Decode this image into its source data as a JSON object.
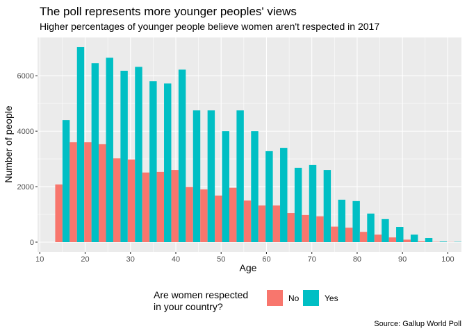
{
  "chart_data": {
    "type": "bar",
    "title": "The poll represents more younger peoples' views",
    "subtitle": "Higher percentages of younger people believe women aren't respected in 2017",
    "xlabel": "Age",
    "ylabel": "Number of people",
    "caption": "Source: Gallup World Poll",
    "xlim": [
      9.5,
      103
    ],
    "ylim": [
      -350,
      7380
    ],
    "x_ticks": [
      10,
      20,
      30,
      40,
      50,
      60,
      70,
      80,
      90,
      100
    ],
    "y_ticks": [
      0,
      2000,
      4000,
      6000
    ],
    "grid": true,
    "legend": {
      "title": "Are women respected in your country?",
      "title_lines": [
        "Are women respected",
        "in your country?"
      ],
      "position": "bottom"
    },
    "bin_width": 3.2,
    "x": [
      15,
      18.2,
      21.4,
      24.6,
      27.8,
      31,
      34.2,
      37.4,
      40.6,
      43.8,
      47,
      50.2,
      53.4,
      56.6,
      59.8,
      63,
      66.2,
      69.4,
      72.6,
      75.8,
      79,
      82.2,
      85.4,
      88.6,
      91.8,
      95,
      98.2,
      101.4
    ],
    "series": [
      {
        "name": "No",
        "color": "#F8766D",
        "values": [
          2080,
          3600,
          3600,
          3530,
          3020,
          2980,
          2510,
          2530,
          2600,
          1990,
          1900,
          1680,
          1960,
          1500,
          1320,
          1320,
          1050,
          980,
          930,
          560,
          520,
          370,
          270,
          170,
          90,
          30,
          10,
          5
        ]
      },
      {
        "name": "Yes",
        "color": "#00BFC4",
        "values": [
          4400,
          7030,
          6450,
          6650,
          6180,
          6320,
          5800,
          5720,
          6220,
          4750,
          4750,
          4000,
          4750,
          4000,
          3280,
          3400,
          2680,
          2780,
          2600,
          1530,
          1480,
          1030,
          830,
          550,
          270,
          150,
          20,
          10
        ]
      }
    ]
  }
}
